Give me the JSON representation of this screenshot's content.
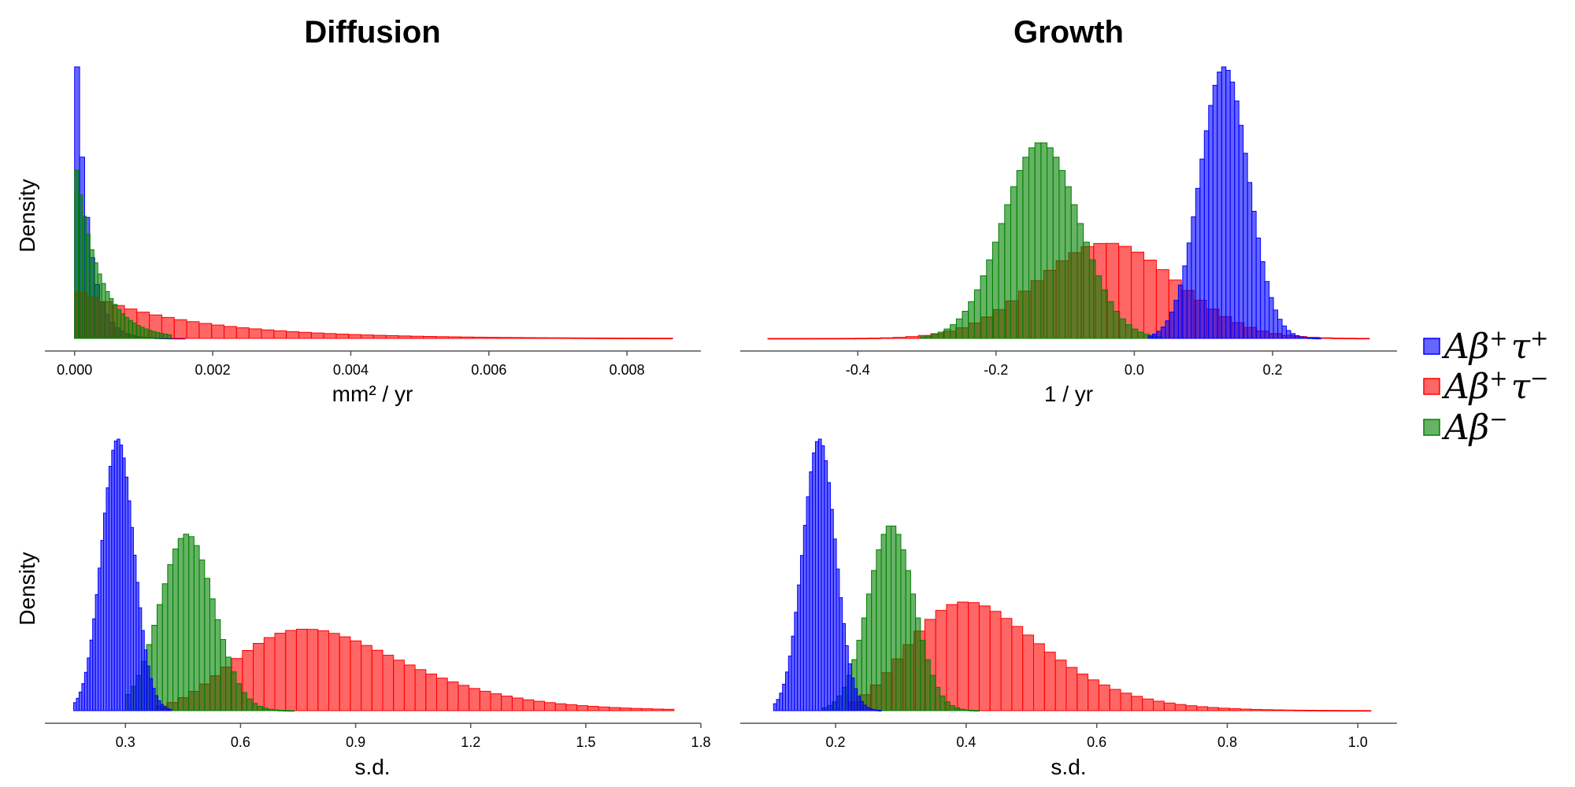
{
  "colors": {
    "s1": "#0000ff",
    "s2": "#ff0000",
    "s3": "#008000"
  },
  "legend": {
    "entries": [
      {
        "key": "s1",
        "parts": [
          "Aβ",
          "+",
          "τ",
          "+"
        ]
      },
      {
        "key": "s2",
        "parts": [
          "Aβ",
          "+",
          "τ",
          "−"
        ]
      },
      {
        "key": "s3",
        "parts": [
          "Aβ",
          "−",
          "",
          ""
        ]
      }
    ]
  },
  "chart_data": [
    {
      "type": "histogram",
      "title": "Diffusion",
      "xlabel": "mm² / yr",
      "ylabel": "Density",
      "xlim": [
        -0.00043,
        0.00907
      ],
      "ylim": [
        0,
        1
      ],
      "xticks": [
        0.0,
        0.002,
        0.004,
        0.006,
        0.008
      ],
      "xtick_labels": [
        "0.000",
        "0.002",
        "0.004",
        "0.006",
        "0.008"
      ],
      "series": [
        {
          "key": "s1",
          "dist": "exp",
          "scale": 0.00018,
          "start": 0.0,
          "end": 0.0016,
          "peak": 1.0,
          "bins": 22
        },
        {
          "key": "s2",
          "dist": "exp",
          "scale": 0.0016,
          "start": 0.0,
          "end": 0.00866,
          "peak": 0.17,
          "bins": 48
        },
        {
          "key": "s3",
          "dist": "exp",
          "scale": 0.00035,
          "start": 0.0,
          "end": 0.0014,
          "peak": 0.62,
          "bins": 25
        }
      ]
    },
    {
      "type": "histogram",
      "title": "Growth",
      "xlabel": "1 / yr",
      "ylabel": "",
      "xlim": [
        -0.57,
        0.38
      ],
      "ylim": [
        0,
        1
      ],
      "xticks": [
        -0.4,
        -0.2,
        0.0,
        0.2
      ],
      "xtick_labels": [
        "-0.4",
        "-0.2",
        "0.0",
        "0.2"
      ],
      "series": [
        {
          "key": "s2",
          "dist": "normal",
          "mean": -0.04,
          "sd": 0.1,
          "start": -0.53,
          "end": 0.34,
          "peak": 0.35,
          "bins": 48
        },
        {
          "key": "s3",
          "dist": "normal",
          "mean": -0.135,
          "sd": 0.055,
          "start": -0.31,
          "end": 0.04,
          "peak": 0.72,
          "bins": 40
        },
        {
          "key": "s1",
          "dist": "normal",
          "mean": 0.13,
          "sd": 0.035,
          "start": 0.02,
          "end": 0.27,
          "peak": 1.0,
          "bins": 40
        }
      ]
    },
    {
      "type": "histogram",
      "title": "",
      "xlabel": "s.d.",
      "ylabel": "Density",
      "xlim": [
        0.09,
        1.8
      ],
      "ylim": [
        0,
        1
      ],
      "xticks": [
        0.3,
        0.6,
        0.9,
        1.2,
        1.5,
        1.8
      ],
      "xtick_labels": [
        "0.3",
        "0.6",
        "0.9",
        "1.2",
        "1.5",
        "1.8"
      ],
      "series": [
        {
          "key": "s2",
          "dist": "lognormal",
          "mode": 0.77,
          "sigma": 0.28,
          "start": 0.38,
          "end": 1.73,
          "peak": 0.3,
          "bins": 48
        },
        {
          "key": "s3",
          "dist": "normal",
          "mean": 0.46,
          "sd": 0.07,
          "start": 0.3,
          "end": 0.74,
          "peak": 0.65,
          "bins": 32
        },
        {
          "key": "s1",
          "dist": "normal",
          "mean": 0.28,
          "sd": 0.042,
          "start": 0.165,
          "end": 0.42,
          "peak": 1.0,
          "bins": 36
        }
      ]
    },
    {
      "type": "histogram",
      "title": "",
      "xlabel": "s.d.",
      "ylabel": "",
      "xlim": [
        0.054,
        1.06
      ],
      "ylim": [
        0,
        1
      ],
      "xticks": [
        0.2,
        0.4,
        0.6,
        0.8,
        1.0
      ],
      "xtick_labels": [
        "0.2",
        "0.4",
        "0.6",
        "0.8",
        "1.0"
      ],
      "series": [
        {
          "key": "s2",
          "dist": "lognormal",
          "mode": 0.4,
          "sigma": 0.25,
          "start": 0.22,
          "end": 1.02,
          "peak": 0.4,
          "bins": 48
        },
        {
          "key": "s3",
          "dist": "normal",
          "mean": 0.285,
          "sd": 0.035,
          "start": 0.18,
          "end": 0.42,
          "peak": 0.68,
          "bins": 32
        },
        {
          "key": "s1",
          "dist": "normal",
          "mean": 0.175,
          "sd": 0.025,
          "start": 0.105,
          "end": 0.27,
          "peak": 1.0,
          "bins": 36
        }
      ]
    }
  ]
}
